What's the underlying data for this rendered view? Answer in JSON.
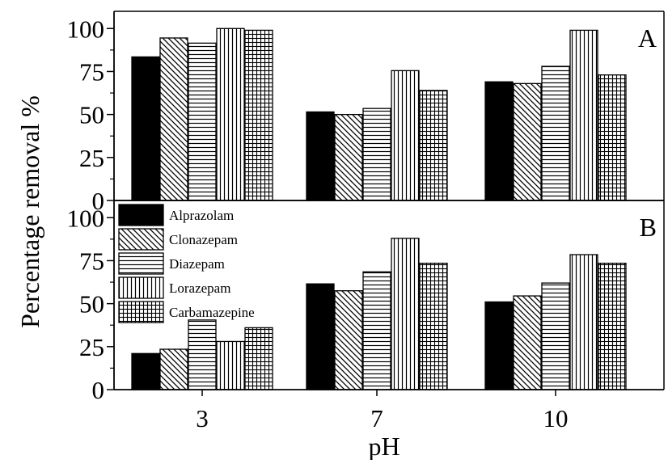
{
  "chart_data": {
    "type": "bar",
    "ylabel": "Percentage removal %",
    "xlabel": "pH",
    "categories": [
      "3",
      "7",
      "10"
    ],
    "ylim": [
      0,
      110
    ],
    "yticks": [
      0,
      25,
      50,
      75,
      100
    ],
    "grid": false,
    "legend_position": "top-left of lower panel",
    "series_styles": [
      {
        "name": "Alprazolam",
        "pattern": "solid-black"
      },
      {
        "name": "Clonazepam",
        "pattern": "diagonal-hatch"
      },
      {
        "name": "Diazepam",
        "pattern": "horizontal-lines"
      },
      {
        "name": "Lorazepam",
        "pattern": "vertical-lines"
      },
      {
        "name": "Carbamazepine",
        "pattern": "crosshatch-grid"
      }
    ],
    "panels": [
      {
        "label": "A",
        "series": [
          {
            "name": "Alprazolam",
            "values": [
              83.5,
              51.5,
              69
            ]
          },
          {
            "name": "Clonazepam",
            "values": [
              94.5,
              50,
              68
            ]
          },
          {
            "name": "Diazepam",
            "values": [
              91.5,
              53.5,
              78
            ]
          },
          {
            "name": "Lorazepam",
            "values": [
              100,
              75.5,
              99
            ]
          },
          {
            "name": "Carbamazepine",
            "values": [
              99,
              64,
              73
            ]
          }
        ]
      },
      {
        "label": "B",
        "series": [
          {
            "name": "Alprazolam",
            "values": [
              21,
              61.5,
              51
            ]
          },
          {
            "name": "Clonazepam",
            "values": [
              23.5,
              57.5,
              54.5
            ]
          },
          {
            "name": "Diazepam",
            "values": [
              40.5,
              68.5,
              62
            ]
          },
          {
            "name": "Lorazepam",
            "values": [
              28,
              88,
              78.5
            ]
          },
          {
            "name": "Carbamazepine",
            "values": [
              36,
              73.5,
              73.5
            ]
          }
        ]
      }
    ]
  }
}
